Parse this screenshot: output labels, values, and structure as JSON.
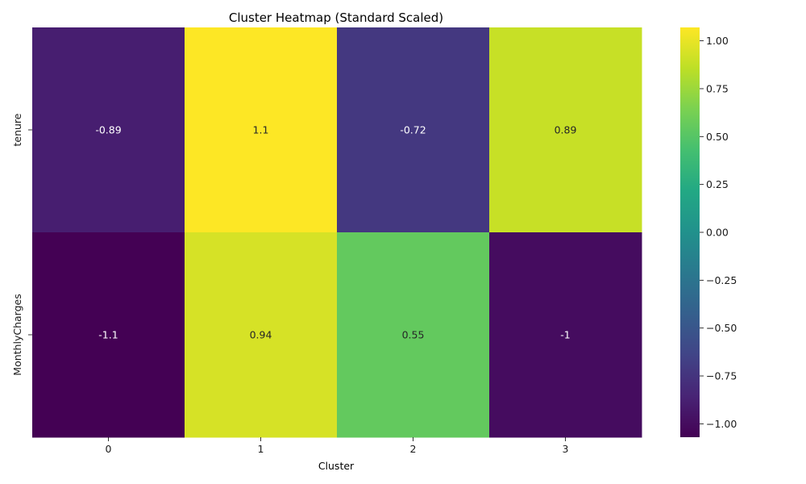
{
  "chart_data": {
    "type": "heatmap",
    "title": "Cluster Heatmap (Standard Scaled)",
    "xlabel": "Cluster",
    "ylabel": "",
    "x_categories": [
      "0",
      "1",
      "2",
      "3"
    ],
    "y_categories": [
      "tenure",
      "MonthlyCharges"
    ],
    "values": [
      [
        -0.89,
        1.1,
        -0.72,
        0.89
      ],
      [
        -1.1,
        0.94,
        0.55,
        -1.0
      ]
    ],
    "annotations": [
      [
        "-0.89",
        "1.1",
        "-0.72",
        "0.89"
      ],
      [
        "-1.1",
        "0.94",
        "0.55",
        "-1"
      ]
    ],
    "colormap": "viridis",
    "colorbar": {
      "vmin": -1.07,
      "vmax": 1.07,
      "ticks": [
        1.0,
        0.75,
        0.5,
        0.25,
        0.0,
        -0.25,
        -0.5,
        -0.75,
        -1.0
      ],
      "tick_labels": [
        "1.00",
        "0.75",
        "0.50",
        "0.25",
        "0.00",
        "−0.25",
        "−0.50",
        "−0.75",
        "−1.00"
      ]
    },
    "grid": false,
    "legend": "colorbar-right"
  }
}
